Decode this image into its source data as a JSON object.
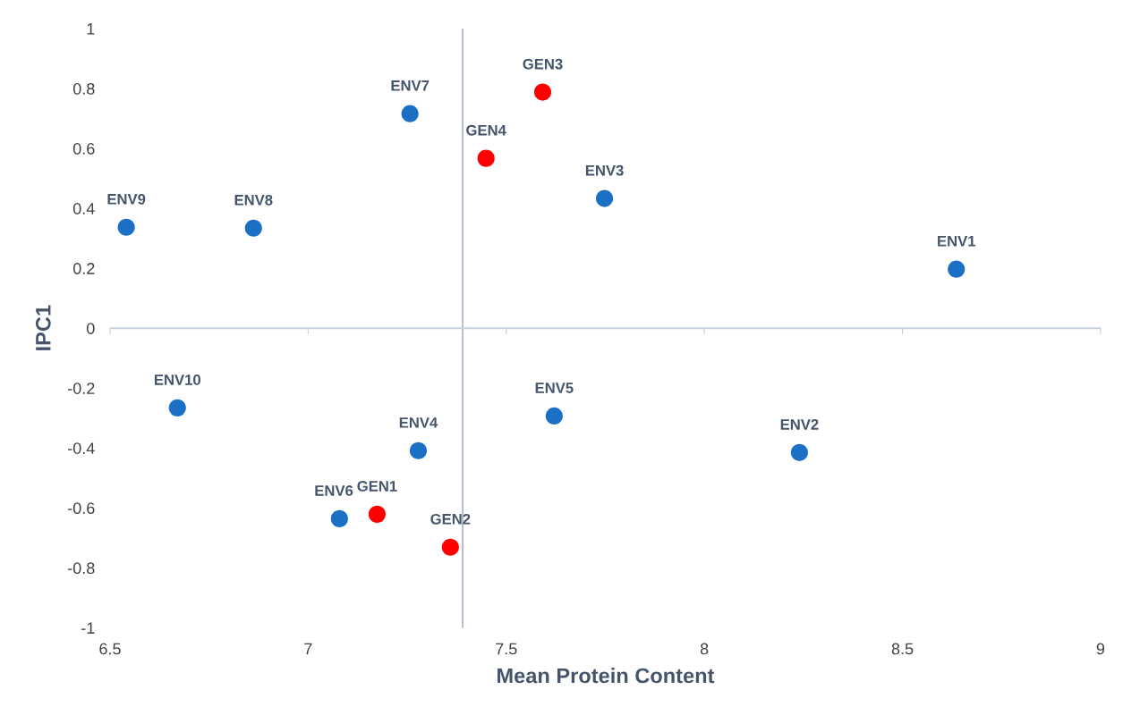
{
  "chart_data": {
    "type": "scatter",
    "xlabel": "Mean Protein Content",
    "ylabel": "IPC1",
    "xlim": [
      6.5,
      9
    ],
    "xticks": [
      6.5,
      7,
      7.5,
      8,
      8.5,
      9
    ],
    "ylim": [
      -1,
      1
    ],
    "yticks": [
      {
        "value": -1,
        "label": "-1"
      },
      {
        "value": -0.8,
        "label": "-0.8"
      },
      {
        "value": -0.6,
        "label": "-0.6"
      },
      {
        "value": -0.4,
        "label": "-0.4"
      },
      {
        "value": -0.2,
        "label": "-0.2"
      },
      0,
      0.2,
      0.4,
      0.6,
      0.8,
      1
    ],
    "grid": false,
    "marker": "circle",
    "series": [
      {
        "color": "#1b70c5",
        "x": [
          8.636,
          8.24,
          7.748,
          7.278,
          7.621,
          7.079,
          7.257,
          6.862,
          6.541,
          6.67
        ],
        "values": [
          0.197,
          -0.415,
          0.433,
          -0.409,
          -0.293,
          -0.636,
          0.716,
          0.334,
          0.337,
          -0.266
        ]
      },
      {
        "color": "#ff0000",
        "x": [
          7.174,
          7.359,
          7.592,
          7.449
        ],
        "values": [
          -0.621,
          -0.731,
          0.788,
          0.567
        ]
      }
    ],
    "ref_lines": [
      {
        "axis": "x",
        "value": 7.39,
        "color": "#b4c0d2"
      },
      {
        "axis": "y",
        "value": 0,
        "color": "#c8d0dc"
      }
    ],
    "annotations": [
      {
        "text": "ENV1",
        "x": 8.636,
        "y": 0.197
      },
      {
        "text": "ENV2",
        "x": 8.24,
        "y": -0.415
      },
      {
        "text": "ENV3",
        "x": 7.748,
        "y": 0.433
      },
      {
        "text": "ENV4",
        "x": 7.278,
        "y": -0.409
      },
      {
        "text": "ENV5",
        "x": 7.621,
        "y": -0.293
      },
      {
        "text": "ENV6",
        "x": 7.079,
        "y": -0.636
      },
      {
        "text": "ENV7",
        "x": 7.257,
        "y": 0.716
      },
      {
        "text": "ENV8",
        "x": 6.862,
        "y": 0.334
      },
      {
        "text": "ENV9",
        "x": 6.541,
        "y": 0.337
      },
      {
        "text": "ENV10",
        "x": 6.67,
        "y": -0.266
      },
      {
        "text": "GEN1",
        "x": 7.174,
        "y": -0.621
      },
      {
        "text": "GEN2",
        "x": 7.359,
        "y": -0.731
      },
      {
        "text": "GEN3",
        "x": 7.592,
        "y": 0.788
      },
      {
        "text": "GEN4",
        "x": 7.449,
        "y": 0.567
      }
    ]
  }
}
